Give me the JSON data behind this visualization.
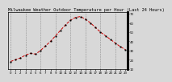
{
  "title": "Milwaukee Weather Outdoor Temperature per Hour (Last 24 Hours)",
  "hours": [
    0,
    1,
    2,
    3,
    4,
    5,
    6,
    7,
    8,
    9,
    10,
    11,
    12,
    13,
    14,
    15,
    16,
    17,
    18,
    19,
    20,
    21,
    22,
    23
  ],
  "temps": [
    18,
    20,
    22,
    25,
    27,
    26,
    30,
    35,
    40,
    46,
    52,
    58,
    63,
    66,
    67,
    64,
    60,
    55,
    50,
    46,
    42,
    38,
    34,
    31
  ],
  "line_color": "#cc0000",
  "marker_color": "#000000",
  "grid_color": "#888888",
  "bg_color": "#d8d8d8",
  "plot_bg_color": "#d8d8d8",
  "ylim_min": 10,
  "ylim_max": 72,
  "title_fontsize": 3.8,
  "tick_fontsize": 2.8,
  "right_axis_values": [
    70,
    60,
    50,
    40,
    30,
    20,
    10
  ],
  "grid_hours": [
    0,
    3,
    6,
    9,
    12,
    15,
    18,
    21
  ]
}
